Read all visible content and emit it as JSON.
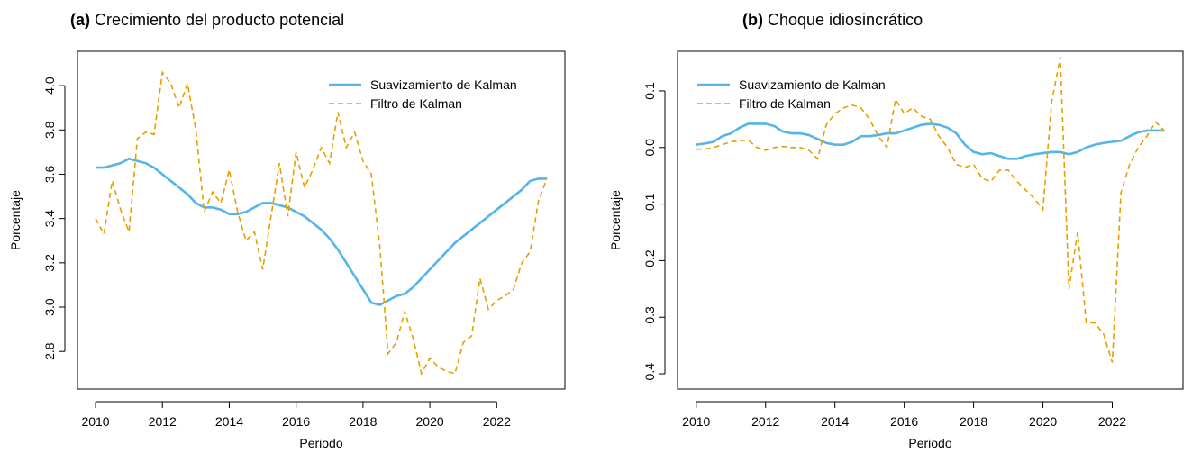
{
  "chart_data": [
    {
      "type": "line",
      "label": "(a)",
      "title": "Crecimiento del producto potencial",
      "x_label": "Periodo",
      "y_label": "Porcentaje",
      "x": [
        2010,
        2010.25,
        2010.5,
        2010.75,
        2011,
        2011.25,
        2011.5,
        2011.75,
        2012,
        2012.25,
        2012.5,
        2012.75,
        2013,
        2013.25,
        2013.5,
        2013.75,
        2014,
        2014.25,
        2014.5,
        2014.75,
        2015,
        2015.25,
        2015.5,
        2015.75,
        2016,
        2016.25,
        2016.5,
        2016.75,
        2017,
        2017.25,
        2017.5,
        2017.75,
        2018,
        2018.25,
        2018.5,
        2018.75,
        2019,
        2019.25,
        2019.5,
        2019.75,
        2020,
        2020.25,
        2020.5,
        2020.75,
        2021,
        2021.25,
        2021.5,
        2021.75,
        2022,
        2022.25,
        2022.5,
        2022.75,
        2023,
        2023.25,
        2023.5
      ],
      "series": [
        {
          "name": "Suavizamiento de Kalman",
          "color": "#56B4E9",
          "dash": false,
          "values": [
            3.63,
            3.63,
            3.64,
            3.65,
            3.67,
            3.66,
            3.65,
            3.63,
            3.6,
            3.57,
            3.54,
            3.51,
            3.47,
            3.45,
            3.45,
            3.44,
            3.42,
            3.42,
            3.43,
            3.45,
            3.47,
            3.47,
            3.46,
            3.45,
            3.43,
            3.41,
            3.38,
            3.35,
            3.31,
            3.26,
            3.2,
            3.14,
            3.08,
            3.02,
            3.01,
            3.03,
            3.05,
            3.06,
            3.09,
            3.13,
            3.17,
            3.21,
            3.25,
            3.29,
            3.32,
            3.35,
            3.38,
            3.41,
            3.44,
            3.47,
            3.5,
            3.53,
            3.57,
            3.58,
            3.58
          ]
        },
        {
          "name": "Filtro de Kalman",
          "color": "#E69F00",
          "dash": true,
          "values": [
            3.4,
            3.33,
            3.57,
            3.44,
            3.34,
            3.76,
            3.79,
            3.78,
            4.06,
            4.01,
            3.9,
            4.01,
            3.8,
            3.43,
            3.52,
            3.47,
            3.62,
            3.43,
            3.3,
            3.34,
            3.17,
            3.41,
            3.65,
            3.41,
            3.7,
            3.54,
            3.62,
            3.72,
            3.65,
            3.88,
            3.72,
            3.79,
            3.66,
            3.6,
            3.28,
            2.79,
            2.84,
            2.98,
            2.86,
            2.7,
            2.77,
            2.73,
            2.71,
            2.7,
            2.84,
            2.87,
            3.13,
            2.99,
            3.03,
            3.05,
            3.08,
            3.2,
            3.25,
            3.48,
            3.58
          ]
        }
      ],
      "xlim": [
        2009.46,
        2024.04
      ],
      "xticks": [
        2010,
        2012,
        2014,
        2016,
        2018,
        2020,
        2022
      ],
      "ylim": [
        2.63,
        4.155
      ],
      "yticks": [
        {
          "value": 2.8,
          "label": "2.8"
        },
        {
          "value": 3,
          "label": "3.0"
        },
        {
          "value": 3.2,
          "label": "3.2"
        },
        {
          "value": 3.4,
          "label": "3.4"
        },
        {
          "value": 3.6,
          "label": "3.6"
        },
        {
          "value": 3.8,
          "label": "3.8"
        },
        {
          "value": 4,
          "label": "4.0"
        }
      ],
      "legend": "topright"
    },
    {
      "type": "line",
      "label": "(b)",
      "title": "Choque idiosincrático",
      "x_label": "Periodo",
      "y_label": "Porcentaje",
      "x": [
        2010,
        2010.25,
        2010.5,
        2010.75,
        2011,
        2011.25,
        2011.5,
        2011.75,
        2012,
        2012.25,
        2012.5,
        2012.75,
        2013,
        2013.25,
        2013.5,
        2013.75,
        2014,
        2014.25,
        2014.5,
        2014.75,
        2015,
        2015.25,
        2015.5,
        2015.75,
        2016,
        2016.25,
        2016.5,
        2016.75,
        2017,
        2017.25,
        2017.5,
        2017.75,
        2018,
        2018.25,
        2018.5,
        2018.75,
        2019,
        2019.25,
        2019.5,
        2019.75,
        2020,
        2020.25,
        2020.5,
        2020.75,
        2021,
        2021.25,
        2021.5,
        2021.75,
        2022,
        2022.25,
        2022.5,
        2022.75,
        2023,
        2023.25,
        2023.5
      ],
      "series": [
        {
          "name": "Suavizamiento de Kalman",
          "color": "#56B4E9",
          "dash": false,
          "values": [
            0.005,
            0.007,
            0.01,
            0.02,
            0.025,
            0.035,
            0.042,
            0.042,
            0.042,
            0.038,
            0.028,
            0.025,
            0.025,
            0.022,
            0.015,
            0.008,
            0.005,
            0.005,
            0.01,
            0.02,
            0.02,
            0.022,
            0.025,
            0.025,
            0.03,
            0.035,
            0.04,
            0.042,
            0.04,
            0.035,
            0.025,
            0.005,
            -0.008,
            -0.012,
            -0.01,
            -0.015,
            -0.02,
            -0.02,
            -0.015,
            -0.012,
            -0.01,
            -0.008,
            -0.008,
            -0.012,
            -0.008,
            0.0,
            0.005,
            0.008,
            0.01,
            0.012,
            0.02,
            0.027,
            0.03,
            0.03,
            0.03
          ]
        },
        {
          "name": "Filtro de Kalman",
          "color": "#E69F00",
          "dash": true,
          "values": [
            -0.003,
            -0.003,
            0.0,
            0.005,
            0.01,
            0.012,
            0.013,
            0.0,
            -0.005,
            0.0,
            0.002,
            0.0,
            0.0,
            -0.005,
            -0.02,
            0.04,
            0.06,
            0.07,
            0.075,
            0.07,
            0.05,
            0.02,
            0.0,
            0.085,
            0.06,
            0.07,
            0.055,
            0.05,
            0.02,
            0.0,
            -0.03,
            -0.035,
            -0.03,
            -0.055,
            -0.06,
            -0.04,
            -0.04,
            -0.06,
            -0.075,
            -0.09,
            -0.11,
            0.08,
            0.16,
            -0.25,
            -0.15,
            -0.31,
            -0.31,
            -0.33,
            -0.38,
            -0.08,
            -0.03,
            0.0,
            0.02,
            0.045,
            0.03
          ]
        }
      ],
      "xlim": [
        2009.46,
        2024.04
      ],
      "xticks": [
        2010,
        2012,
        2014,
        2016,
        2018,
        2020,
        2022
      ],
      "ylim": [
        -0.427,
        0.17
      ],
      "yticks": [
        -0.4,
        -0.3,
        -0.2,
        -0.1,
        {
          "value": 0,
          "label": "0.0"
        },
        0.1
      ],
      "legend": "topleft"
    }
  ]
}
